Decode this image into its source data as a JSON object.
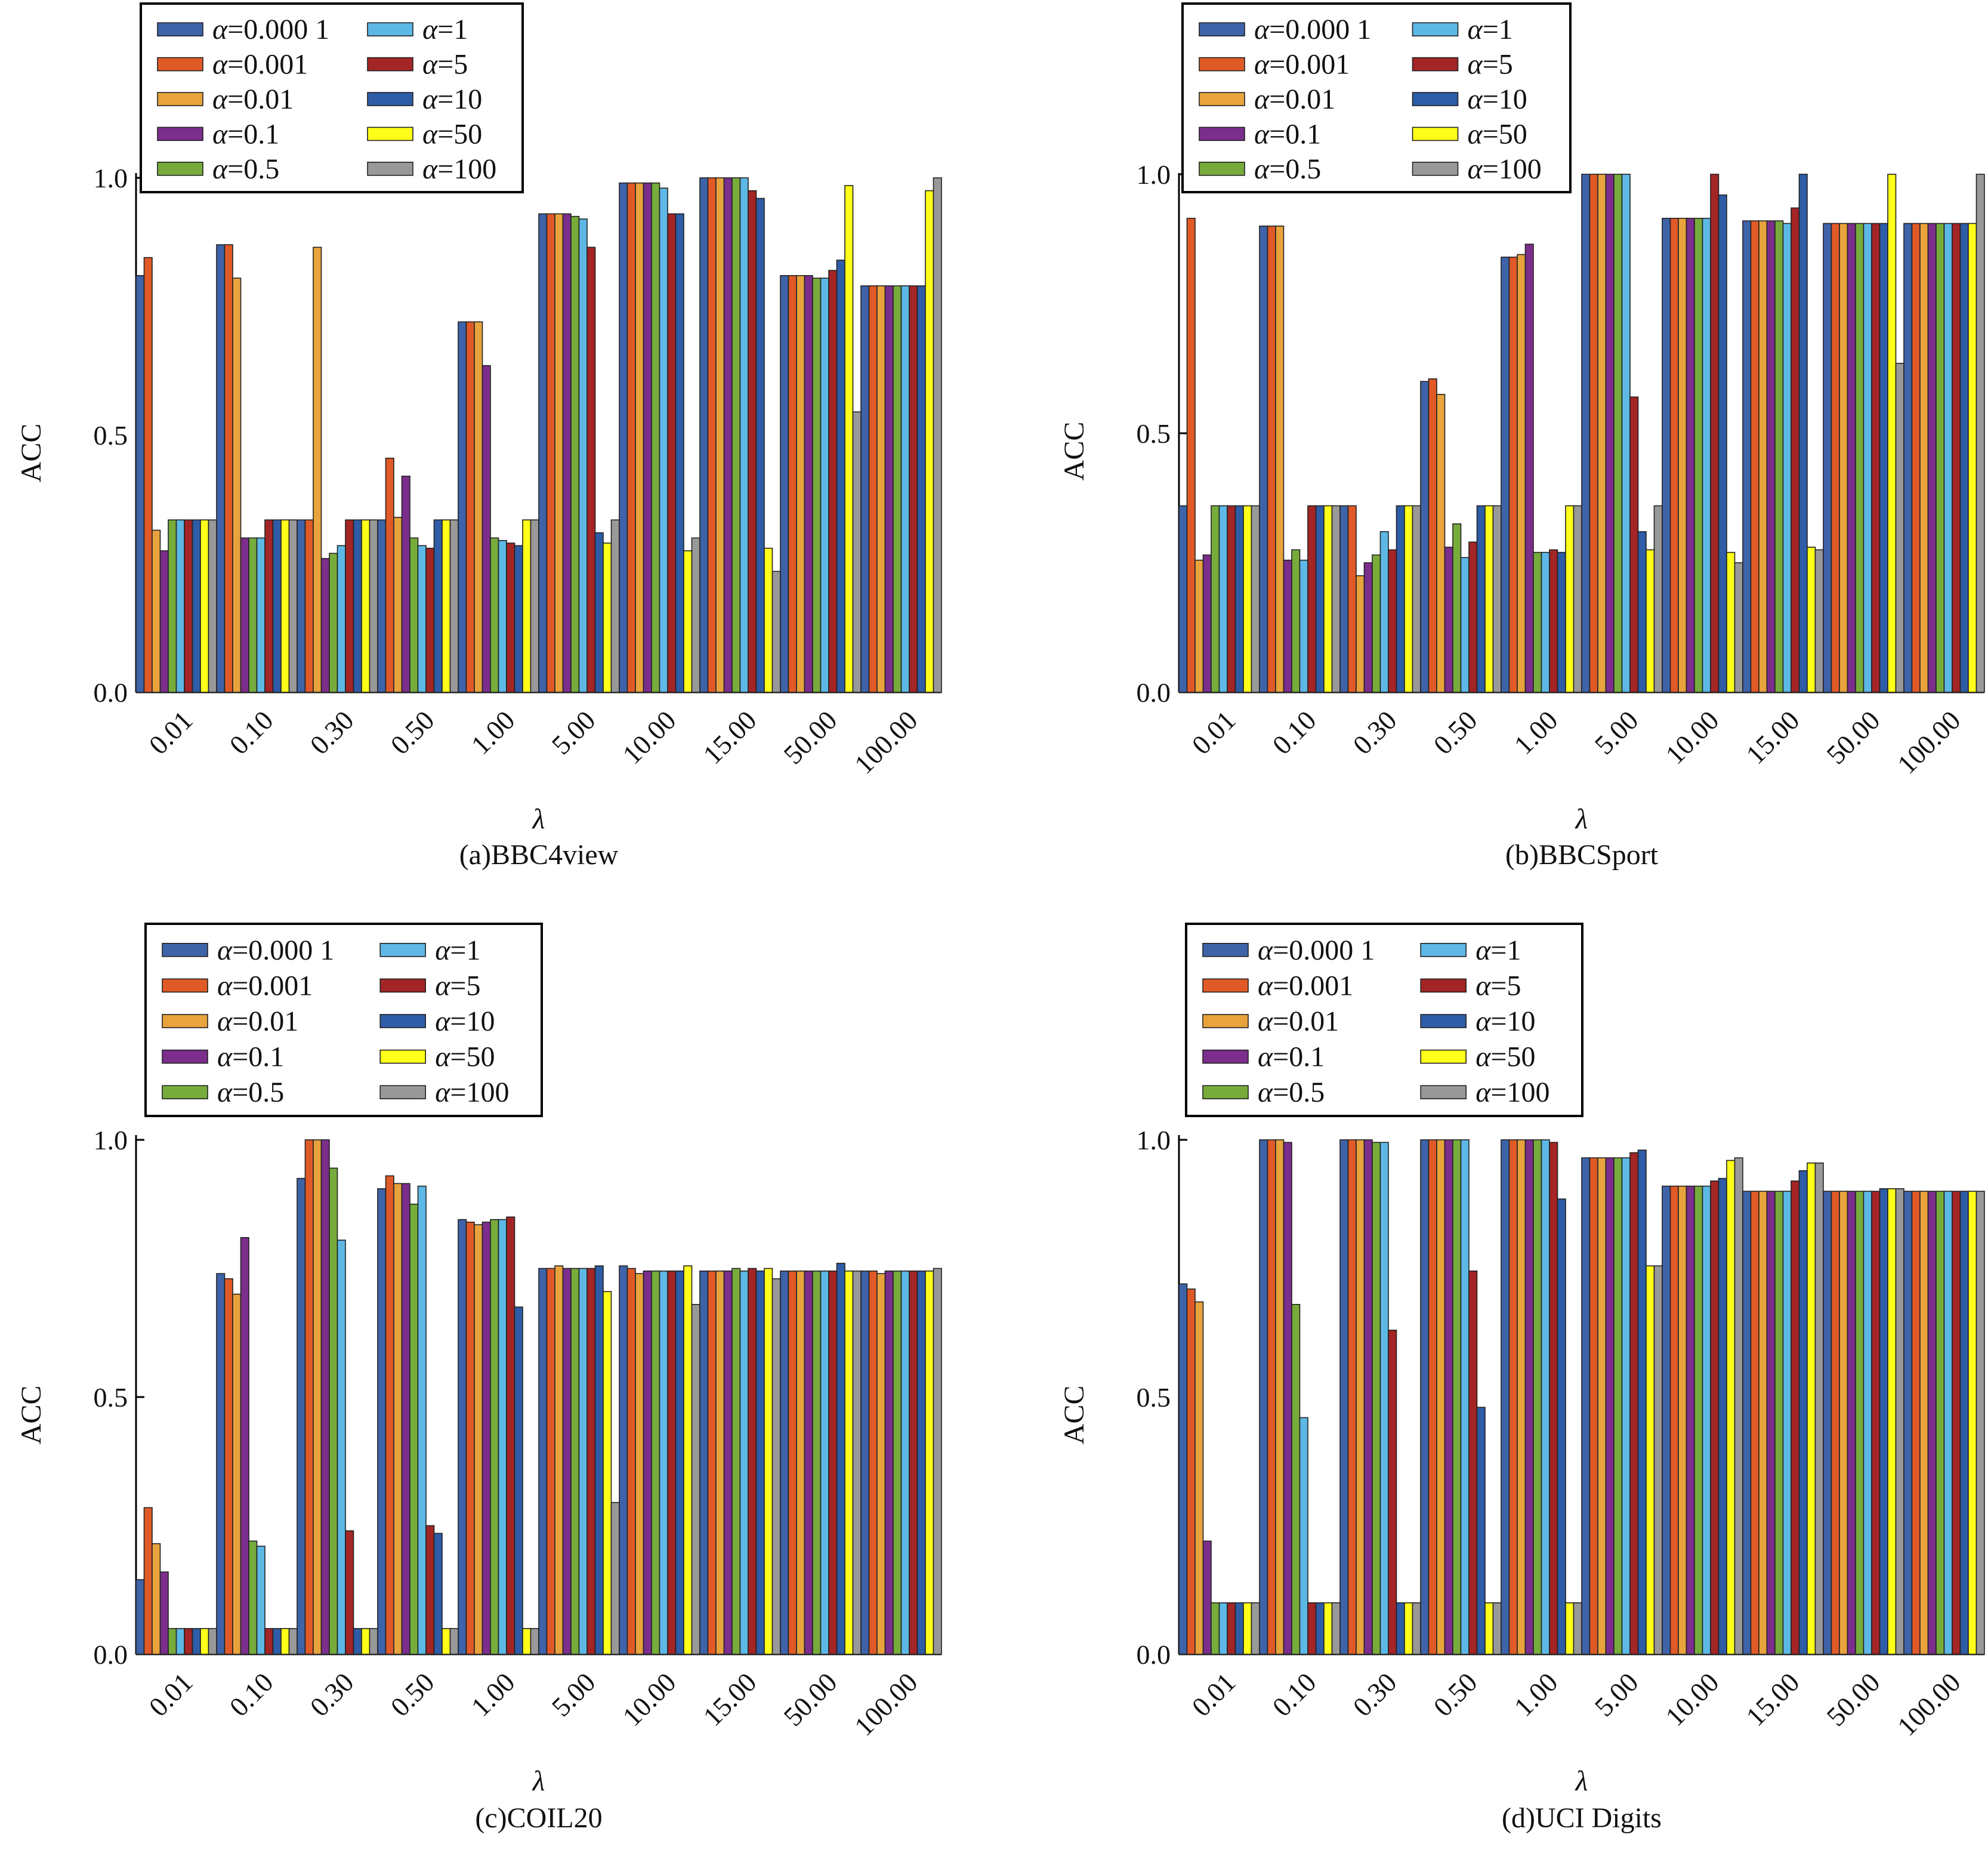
{
  "colors": [
    "#3E63A8",
    "#E05A27",
    "#E8A33D",
    "#7B2E8C",
    "#77AC3C",
    "#5DB8E6",
    "#A32525",
    "#2E5CA6",
    "#FFFF1A",
    "#999999"
  ],
  "legend_alpha": [
    "0.000 1",
    "0.001",
    "0.01",
    "0.1",
    "0.5",
    "1",
    "5",
    "10",
    "50",
    "100"
  ],
  "chart_data": [
    {
      "type": "bar",
      "caption": "(a)BBC4view",
      "xlabel": "λ",
      "ylabel": "ACC",
      "ylim": [
        0,
        1
      ],
      "yticks": [
        "0.0",
        "0.5",
        "1.0"
      ],
      "categories": [
        "0.01",
        "0.10",
        "0.30",
        "0.50",
        "1.00",
        "5.00",
        "10.00",
        "15.00",
        "50.00",
        "100.00"
      ],
      "legend_position": "top-left",
      "series": [
        {
          "name": "α=0.000 1",
          "values": [
            0.81,
            0.87,
            0.335,
            0.335,
            0.72,
            0.93,
            0.99,
            1.0,
            0.81,
            0.79
          ]
        },
        {
          "name": "α=0.001",
          "values": [
            0.845,
            0.87,
            0.335,
            0.455,
            0.72,
            0.93,
            0.99,
            1.0,
            0.81,
            0.79
          ]
        },
        {
          "name": "α=0.01",
          "values": [
            0.315,
            0.805,
            0.865,
            0.34,
            0.72,
            0.93,
            0.99,
            1.0,
            0.81,
            0.79
          ]
        },
        {
          "name": "α=0.1",
          "values": [
            0.275,
            0.3,
            0.26,
            0.42,
            0.635,
            0.93,
            0.99,
            1.0,
            0.81,
            0.79
          ]
        },
        {
          "name": "α=0.5",
          "values": [
            0.335,
            0.3,
            0.27,
            0.3,
            0.3,
            0.925,
            0.99,
            1.0,
            0.805,
            0.79
          ]
        },
        {
          "name": "α=1",
          "values": [
            0.335,
            0.3,
            0.285,
            0.285,
            0.295,
            0.92,
            0.98,
            1.0,
            0.805,
            0.79
          ]
        },
        {
          "name": "α=5",
          "values": [
            0.335,
            0.335,
            0.335,
            0.28,
            0.29,
            0.865,
            0.93,
            0.975,
            0.82,
            0.79
          ]
        },
        {
          "name": "α=10",
          "values": [
            0.335,
            0.335,
            0.335,
            0.335,
            0.285,
            0.31,
            0.93,
            0.96,
            0.84,
            0.79
          ]
        },
        {
          "name": "α=50",
          "values": [
            0.335,
            0.335,
            0.335,
            0.335,
            0.335,
            0.29,
            0.275,
            0.28,
            0.985,
            0.975
          ]
        },
        {
          "name": "α=100",
          "values": [
            0.335,
            0.335,
            0.335,
            0.335,
            0.335,
            0.335,
            0.3,
            0.235,
            0.545,
            1.0
          ]
        }
      ]
    },
    {
      "type": "bar",
      "caption": "(b)BBCSport",
      "xlabel": "λ",
      "ylabel": "ACC",
      "ylim": [
        0,
        1
      ],
      "yticks": [
        "0.0",
        "0.5",
        "1.0"
      ],
      "categories": [
        "0.01",
        "0.10",
        "0.30",
        "0.50",
        "1.00",
        "5.00",
        "10.00",
        "15.00",
        "50.00",
        "100.00"
      ],
      "legend_position": "top-left",
      "series": [
        {
          "name": "α=0.000 1",
          "values": [
            0.36,
            0.9,
            0.36,
            0.6,
            0.84,
            1.0,
            0.915,
            0.91,
            0.905,
            0.905
          ]
        },
        {
          "name": "α=0.001",
          "values": [
            0.915,
            0.9,
            0.36,
            0.605,
            0.84,
            1.0,
            0.915,
            0.91,
            0.905,
            0.905
          ]
        },
        {
          "name": "α=0.01",
          "values": [
            0.255,
            0.9,
            0.225,
            0.575,
            0.845,
            1.0,
            0.915,
            0.91,
            0.905,
            0.905
          ]
        },
        {
          "name": "α=0.1",
          "values": [
            0.265,
            0.255,
            0.25,
            0.28,
            0.865,
            1.0,
            0.915,
            0.91,
            0.905,
            0.905
          ]
        },
        {
          "name": "α=0.5",
          "values": [
            0.36,
            0.275,
            0.265,
            0.325,
            0.27,
            1.0,
            0.915,
            0.91,
            0.905,
            0.905
          ]
        },
        {
          "name": "α=1",
          "values": [
            0.36,
            0.255,
            0.31,
            0.26,
            0.27,
            1.0,
            0.915,
            0.905,
            0.905,
            0.905
          ]
        },
        {
          "name": "α=5",
          "values": [
            0.36,
            0.36,
            0.275,
            0.29,
            0.275,
            0.57,
            1.0,
            0.935,
            0.905,
            0.905
          ]
        },
        {
          "name": "α=10",
          "values": [
            0.36,
            0.36,
            0.36,
            0.36,
            0.27,
            0.31,
            0.96,
            1.0,
            0.905,
            0.905
          ]
        },
        {
          "name": "α=50",
          "values": [
            0.36,
            0.36,
            0.36,
            0.36,
            0.36,
            0.275,
            0.27,
            0.28,
            1.0,
            0.905
          ]
        },
        {
          "name": "α=100",
          "values": [
            0.36,
            0.36,
            0.36,
            0.36,
            0.36,
            0.36,
            0.25,
            0.275,
            0.635,
            1.0
          ]
        }
      ]
    },
    {
      "type": "bar",
      "caption": "(c)COIL20",
      "xlabel": "λ",
      "ylabel": "ACC",
      "ylim": [
        0,
        1
      ],
      "yticks": [
        "0.0",
        "0.5",
        "1.0"
      ],
      "categories": [
        "0.01",
        "0.10",
        "0.30",
        "0.50",
        "1.00",
        "5.00",
        "10.00",
        "15.00",
        "50.00",
        "100.00"
      ],
      "legend_position": "top-left",
      "series": [
        {
          "name": "α=0.000 1",
          "values": [
            0.145,
            0.74,
            0.925,
            0.905,
            0.845,
            0.75,
            0.755,
            0.745,
            0.745,
            0.745
          ]
        },
        {
          "name": "α=0.001",
          "values": [
            0.285,
            0.73,
            1.0,
            0.93,
            0.84,
            0.75,
            0.75,
            0.745,
            0.745,
            0.745
          ]
        },
        {
          "name": "α=0.01",
          "values": [
            0.215,
            0.7,
            1.0,
            0.915,
            0.835,
            0.755,
            0.74,
            0.745,
            0.745,
            0.74
          ]
        },
        {
          "name": "α=0.1",
          "values": [
            0.16,
            0.81,
            1.0,
            0.915,
            0.84,
            0.75,
            0.745,
            0.745,
            0.745,
            0.745
          ]
        },
        {
          "name": "α=0.5",
          "values": [
            0.05,
            0.22,
            0.945,
            0.875,
            0.845,
            0.75,
            0.745,
            0.75,
            0.745,
            0.745
          ]
        },
        {
          "name": "α=1",
          "values": [
            0.05,
            0.21,
            0.805,
            0.91,
            0.845,
            0.75,
            0.745,
            0.745,
            0.745,
            0.745
          ]
        },
        {
          "name": "α=5",
          "values": [
            0.05,
            0.05,
            0.24,
            0.25,
            0.85,
            0.75,
            0.745,
            0.75,
            0.745,
            0.745
          ]
        },
        {
          "name": "α=10",
          "values": [
            0.05,
            0.05,
            0.05,
            0.235,
            0.675,
            0.755,
            0.745,
            0.745,
            0.76,
            0.745
          ]
        },
        {
          "name": "α=50",
          "values": [
            0.05,
            0.05,
            0.05,
            0.05,
            0.05,
            0.705,
            0.755,
            0.75,
            0.745,
            0.745
          ]
        },
        {
          "name": "α=100",
          "values": [
            0.05,
            0.05,
            0.05,
            0.05,
            0.05,
            0.295,
            0.68,
            0.73,
            0.745,
            0.75
          ]
        }
      ]
    },
    {
      "type": "bar",
      "caption": "(d)UCI Digits",
      "xlabel": "λ",
      "ylabel": "ACC",
      "ylim": [
        0,
        1
      ],
      "yticks": [
        "0.0",
        "0.5",
        "1.0"
      ],
      "categories": [
        "0.01",
        "0.10",
        "0.30",
        "0.50",
        "1.00",
        "5.00",
        "10.00",
        "15.00",
        "50.00",
        "100.00"
      ],
      "legend_position": "top-left",
      "series": [
        {
          "name": "α=0.000 1",
          "values": [
            0.72,
            1.0,
            1.0,
            1.0,
            1.0,
            0.965,
            0.91,
            0.9,
            0.9,
            0.9
          ]
        },
        {
          "name": "α=0.001",
          "values": [
            0.71,
            1.0,
            1.0,
            1.0,
            1.0,
            0.965,
            0.91,
            0.9,
            0.9,
            0.9
          ]
        },
        {
          "name": "α=0.01",
          "values": [
            0.685,
            1.0,
            1.0,
            1.0,
            1.0,
            0.965,
            0.91,
            0.9,
            0.9,
            0.9
          ]
        },
        {
          "name": "α=0.1",
          "values": [
            0.22,
            0.995,
            1.0,
            1.0,
            1.0,
            0.965,
            0.91,
            0.9,
            0.9,
            0.9
          ]
        },
        {
          "name": "α=0.5",
          "values": [
            0.1,
            0.68,
            0.995,
            1.0,
            1.0,
            0.965,
            0.91,
            0.9,
            0.9,
            0.9
          ]
        },
        {
          "name": "α=1",
          "values": [
            0.1,
            0.46,
            0.995,
            1.0,
            1.0,
            0.965,
            0.91,
            0.9,
            0.9,
            0.9
          ]
        },
        {
          "name": "α=5",
          "values": [
            0.1,
            0.1,
            0.63,
            0.745,
            0.995,
            0.975,
            0.92,
            0.92,
            0.9,
            0.9
          ]
        },
        {
          "name": "α=10",
          "values": [
            0.1,
            0.1,
            0.1,
            0.48,
            0.885,
            0.98,
            0.925,
            0.94,
            0.905,
            0.9
          ]
        },
        {
          "name": "α=50",
          "values": [
            0.1,
            0.1,
            0.1,
            0.1,
            0.1,
            0.755,
            0.96,
            0.955,
            0.905,
            0.9
          ]
        },
        {
          "name": "α=100",
          "values": [
            0.1,
            0.1,
            0.1,
            0.1,
            0.1,
            0.755,
            0.965,
            0.955,
            0.905,
            0.9
          ]
        }
      ]
    }
  ]
}
